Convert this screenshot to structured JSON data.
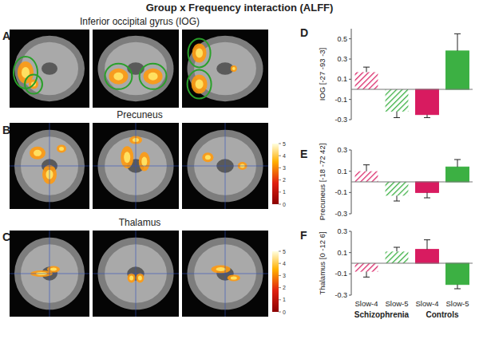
{
  "figure": {
    "title": "Group x Frequency interaction (ALFF)",
    "panels": [
      {
        "label": "A",
        "title": "Inferior occipital gyrus (IOG)"
      },
      {
        "label": "B",
        "title": "Precuneus",
        "colorbar_ticks": [
          0,
          1,
          2,
          3,
          4,
          5
        ]
      },
      {
        "label": "C",
        "title": "Thalamus",
        "colorbar_ticks": [
          0,
          1,
          2,
          3,
          4,
          5
        ]
      }
    ]
  },
  "chart_data": [
    {
      "type": "bar",
      "panel_label": "D",
      "y_label": "IOG [-27 -93 -3]",
      "categories": [
        null,
        null
      ],
      "ylim": [
        -0.3,
        0.6
      ],
      "yticks": [
        -0.3,
        -0.1,
        0.1,
        0.3,
        0.5
      ],
      "tick_labels": "y",
      "series": [
        {
          "line_style": "hatched",
          "colors": [
            "#d81b60",
            "#3cb043"
          ],
          "values": [
            0.17,
            -0.22
          ],
          "errors": [
            0.05,
            0.06
          ]
        },
        {
          "line_style": "solid",
          "colors": [
            "#d81b60",
            "#3cb043"
          ],
          "values": [
            -0.25,
            0.38
          ],
          "errors": [
            0.03,
            0.17
          ]
        }
      ]
    },
    {
      "type": "bar",
      "panel_label": "E",
      "y_label": "Precuneus [-18 -72 42]",
      "categories": [
        null,
        null
      ],
      "ylim": [
        -0.3,
        0.3
      ],
      "yticks": [
        -0.3,
        -0.1,
        0.1,
        0.3
      ],
      "tick_labels": "y",
      "series": [
        {
          "line_style": "hatched",
          "colors": [
            "#d81b60",
            "#3cb043"
          ],
          "values": [
            0.1,
            -0.13
          ],
          "errors": [
            0.06,
            0.05
          ]
        },
        {
          "line_style": "solid",
          "colors": [
            "#d81b60",
            "#3cb043"
          ],
          "values": [
            -0.1,
            0.14
          ],
          "errors": [
            0.05,
            0.07
          ]
        }
      ]
    },
    {
      "type": "bar",
      "panel_label": "F",
      "y_label": "Thalamus [0 -12 6]",
      "categories": [
        "Slow-4",
        "Slow-5"
      ],
      "ylim": [
        -0.3,
        0.3
      ],
      "yticks": [
        -0.3,
        -0.1,
        0.1,
        0.3
      ],
      "tick_labels": true,
      "series": [
        {
          "name": "Schizophrenia",
          "line_style": "hatched",
          "colors": [
            "#d81b60",
            "#3cb043"
          ],
          "values": [
            -0.08,
            0.11
          ],
          "errors": [
            0.05,
            0.04
          ]
        },
        {
          "name": "Controls",
          "line_style": "solid",
          "colors": [
            "#d81b60",
            "#3cb043"
          ],
          "values": [
            0.13,
            -0.2
          ],
          "errors": [
            0.09,
            0.04
          ]
        }
      ]
    }
  ]
}
